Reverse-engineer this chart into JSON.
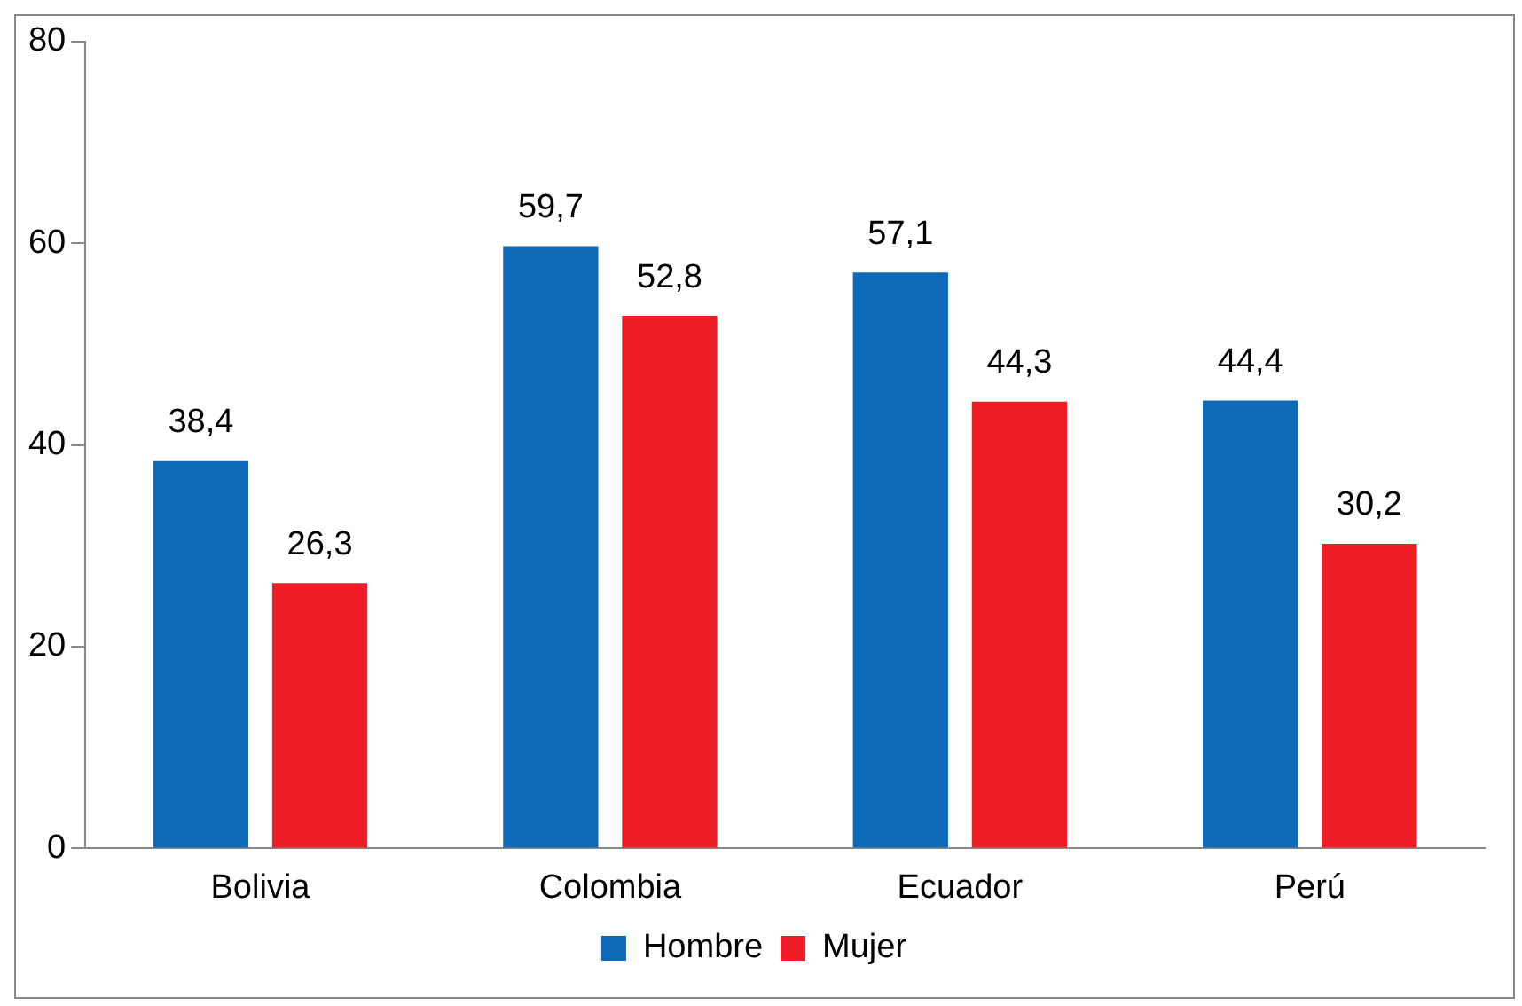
{
  "chart_data": {
    "type": "bar",
    "categories": [
      "Bolivia",
      "Colombia",
      "Ecuador",
      "Perú"
    ],
    "series": [
      {
        "name": "Hombre",
        "color": "#0e6ab8",
        "values": [
          38.4,
          59.7,
          57.1,
          44.4
        ],
        "value_labels": [
          "38,4",
          "59,7",
          "57,1",
          "44,4"
        ]
      },
      {
        "name": "Mujer",
        "color": "#ee1c25",
        "values": [
          26.3,
          52.8,
          44.3,
          30.2
        ],
        "value_labels": [
          "26,3",
          "52,8",
          "44,3",
          "30,2"
        ]
      }
    ],
    "ylim": [
      0,
      80
    ],
    "yticks": [
      0,
      20,
      40,
      60,
      80
    ],
    "grid": false,
    "legend": "bottom"
  }
}
